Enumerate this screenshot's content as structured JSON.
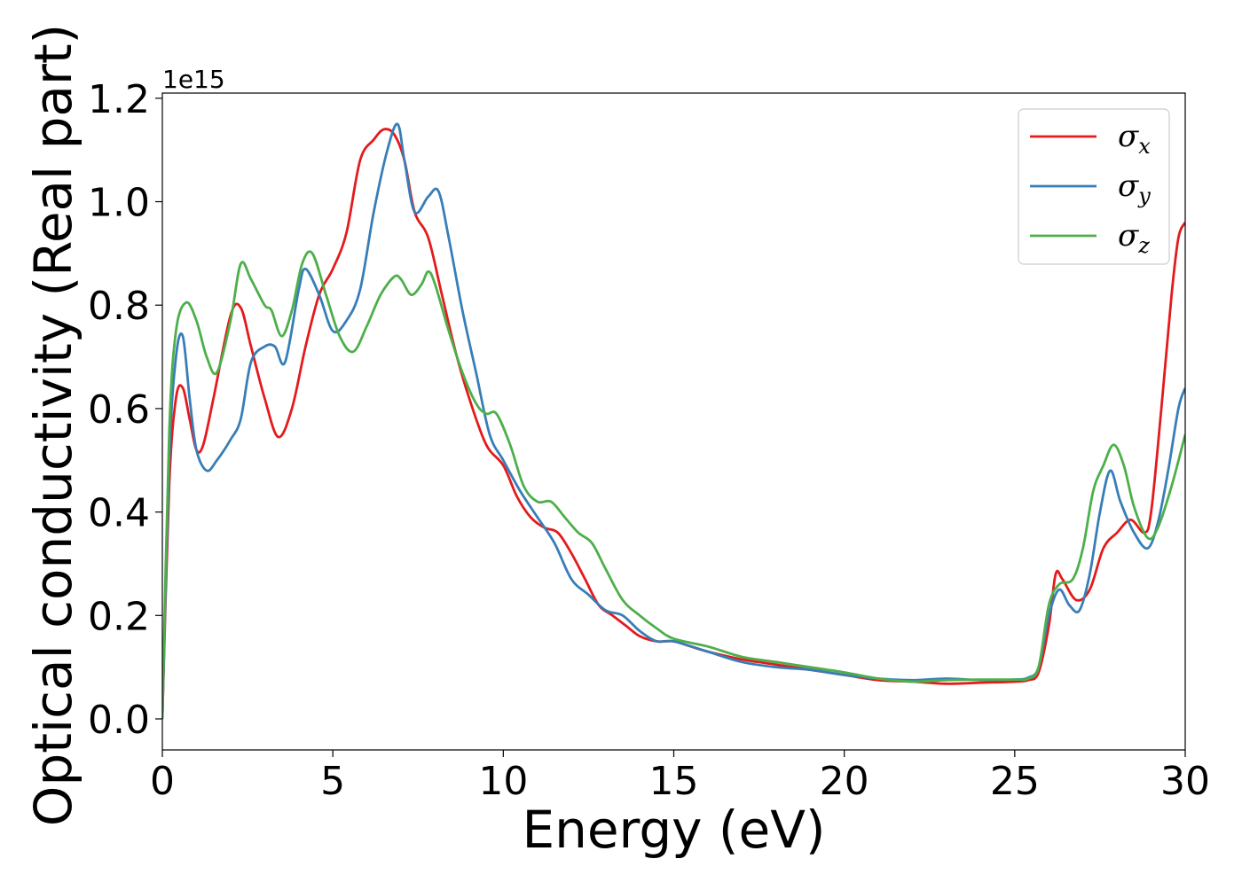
{
  "chart_data": {
    "type": "line",
    "title": "",
    "xlabel": "Energy (eV)",
    "ylabel": "Optical conductivity (Real part)",
    "y_offset_label": "1e15",
    "xlim": [
      0,
      30
    ],
    "ylim": [
      -0.06,
      1.21
    ],
    "xticks": [
      0,
      5,
      10,
      15,
      20,
      25,
      30
    ],
    "xtick_labels": [
      "0",
      "5",
      "10",
      "15",
      "20",
      "25",
      "30"
    ],
    "yticks": [
      0.0,
      0.2,
      0.4,
      0.6,
      0.8,
      1.0,
      1.2
    ],
    "ytick_labels": [
      "0.0",
      "0.2",
      "0.4",
      "0.6",
      "0.8",
      "1.0",
      "1.2"
    ],
    "grid": false,
    "legend_position": "top-right",
    "series": [
      {
        "name": "σx",
        "legend_base": "σ",
        "legend_sub": "x",
        "color": "#e41a1c",
        "x": [
          0,
          0.2,
          0.4,
          0.6,
          0.8,
          1.0,
          1.2,
          1.5,
          2.0,
          2.3,
          2.6,
          3.0,
          3.4,
          3.8,
          4.2,
          4.6,
          5.0,
          5.4,
          5.8,
          6.2,
          6.5,
          6.8,
          7.1,
          7.4,
          7.8,
          8.2,
          8.6,
          9.0,
          9.5,
          10.0,
          10.4,
          10.8,
          11.2,
          11.6,
          12.0,
          12.4,
          12.8,
          13.2,
          13.6,
          14.0,
          14.5,
          15.0,
          15.5,
          16.0,
          17.0,
          18.0,
          19.0,
          20.0,
          21.0,
          22.0,
          23.0,
          24.0,
          25.0,
          25.4,
          25.7,
          26.0,
          26.2,
          26.4,
          26.8,
          27.2,
          27.6,
          28.0,
          28.4,
          28.8,
          29.0,
          29.3,
          29.6,
          29.8,
          30.0
        ],
        "y": [
          0.0,
          0.45,
          0.62,
          0.64,
          0.58,
          0.52,
          0.53,
          0.62,
          0.78,
          0.795,
          0.72,
          0.62,
          0.545,
          0.6,
          0.72,
          0.82,
          0.87,
          0.94,
          1.08,
          1.12,
          1.14,
          1.13,
          1.08,
          0.98,
          0.93,
          0.82,
          0.71,
          0.62,
          0.53,
          0.49,
          0.43,
          0.39,
          0.37,
          0.36,
          0.32,
          0.27,
          0.22,
          0.2,
          0.18,
          0.16,
          0.15,
          0.15,
          0.14,
          0.13,
          0.115,
          0.105,
          0.095,
          0.085,
          0.075,
          0.072,
          0.068,
          0.07,
          0.072,
          0.075,
          0.09,
          0.18,
          0.28,
          0.27,
          0.23,
          0.25,
          0.33,
          0.36,
          0.385,
          0.36,
          0.4,
          0.6,
          0.82,
          0.93,
          0.96
        ]
      },
      {
        "name": "σy",
        "legend_base": "σ",
        "legend_sub": "y",
        "color": "#377eb8",
        "x": [
          0,
          0.2,
          0.4,
          0.6,
          0.8,
          1.0,
          1.3,
          1.6,
          2.0,
          2.3,
          2.6,
          3.0,
          3.3,
          3.6,
          4.0,
          4.2,
          4.6,
          5.0,
          5.4,
          5.8,
          6.2,
          6.6,
          6.9,
          7.1,
          7.4,
          7.8,
          8.1,
          8.4,
          8.8,
          9.2,
          9.6,
          10.0,
          10.5,
          11.0,
          11.5,
          12.0,
          12.5,
          13.0,
          13.5,
          14.0,
          14.5,
          15.0,
          16.0,
          17.0,
          18.0,
          19.0,
          20.0,
          21.0,
          22.0,
          23.0,
          24.0,
          25.0,
          25.4,
          25.7,
          26.0,
          26.3,
          26.6,
          26.9,
          27.2,
          27.5,
          27.8,
          28.1,
          28.5,
          28.9,
          29.2,
          29.5,
          29.8,
          30.0
        ],
        "y": [
          0.0,
          0.5,
          0.7,
          0.74,
          0.62,
          0.52,
          0.48,
          0.5,
          0.54,
          0.58,
          0.69,
          0.72,
          0.72,
          0.69,
          0.83,
          0.87,
          0.82,
          0.75,
          0.77,
          0.83,
          0.98,
          1.1,
          1.15,
          1.08,
          0.98,
          1.01,
          1.02,
          0.93,
          0.79,
          0.67,
          0.55,
          0.5,
          0.44,
          0.39,
          0.34,
          0.27,
          0.24,
          0.21,
          0.2,
          0.17,
          0.15,
          0.15,
          0.13,
          0.11,
          0.1,
          0.095,
          0.085,
          0.078,
          0.075,
          0.078,
          0.075,
          0.076,
          0.08,
          0.1,
          0.2,
          0.25,
          0.22,
          0.21,
          0.28,
          0.4,
          0.48,
          0.42,
          0.36,
          0.33,
          0.38,
          0.48,
          0.6,
          0.64
        ]
      },
      {
        "name": "σz",
        "legend_base": "σ",
        "legend_sub": "z",
        "color": "#4daf4a",
        "x": [
          0,
          0.2,
          0.4,
          0.7,
          1.0,
          1.3,
          1.6,
          2.0,
          2.3,
          2.6,
          3.0,
          3.2,
          3.5,
          3.8,
          4.1,
          4.4,
          4.8,
          5.2,
          5.6,
          6.0,
          6.4,
          6.8,
          7.0,
          7.3,
          7.6,
          7.8,
          8.0,
          8.4,
          8.8,
          9.2,
          9.5,
          9.8,
          10.2,
          10.6,
          11.0,
          11.4,
          11.8,
          12.2,
          12.6,
          13.0,
          13.5,
          14.0,
          14.5,
          15.0,
          16.0,
          17.0,
          18.0,
          19.0,
          20.0,
          21.0,
          22.0,
          23.0,
          24.0,
          25.0,
          25.4,
          25.7,
          26.0,
          26.3,
          26.7,
          27.0,
          27.3,
          27.6,
          27.9,
          28.2,
          28.5,
          28.9,
          29.2,
          29.6,
          30.0
        ],
        "y": [
          0.0,
          0.55,
          0.75,
          0.805,
          0.77,
          0.7,
          0.67,
          0.77,
          0.88,
          0.85,
          0.8,
          0.79,
          0.74,
          0.79,
          0.88,
          0.9,
          0.82,
          0.74,
          0.71,
          0.76,
          0.82,
          0.855,
          0.85,
          0.82,
          0.84,
          0.865,
          0.84,
          0.75,
          0.67,
          0.61,
          0.59,
          0.59,
          0.53,
          0.45,
          0.42,
          0.42,
          0.39,
          0.36,
          0.34,
          0.29,
          0.23,
          0.2,
          0.175,
          0.155,
          0.14,
          0.12,
          0.11,
          0.1,
          0.09,
          0.078,
          0.072,
          0.075,
          0.076,
          0.076,
          0.078,
          0.1,
          0.22,
          0.26,
          0.27,
          0.33,
          0.44,
          0.49,
          0.53,
          0.49,
          0.41,
          0.35,
          0.37,
          0.45,
          0.55
        ]
      }
    ]
  }
}
